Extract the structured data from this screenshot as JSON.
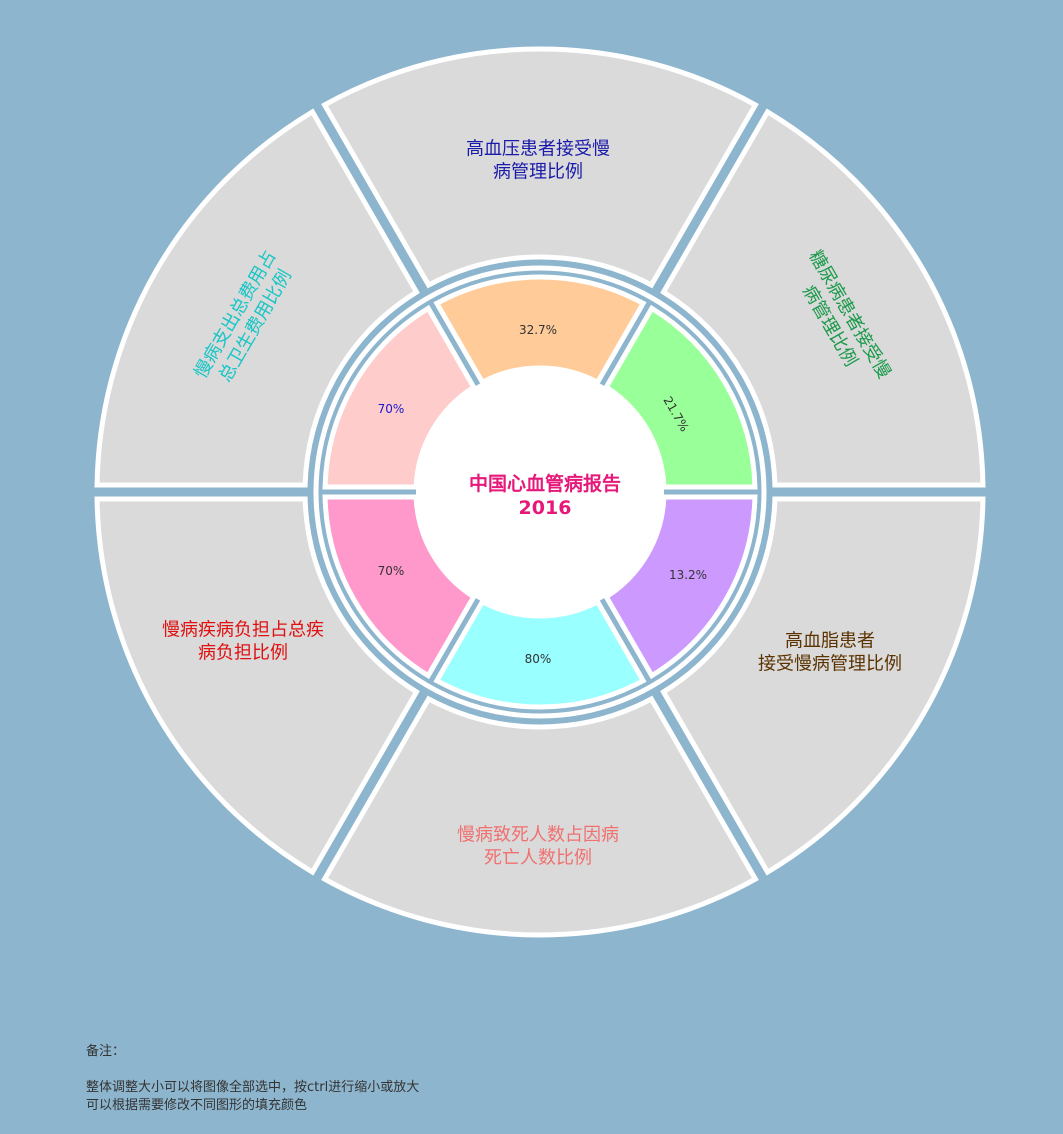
{
  "center": {
    "title_line1": "中国心血管病报告",
    "title_line2": "2016",
    "color": "#e6197a"
  },
  "segments": [
    {
      "id": "hypertension",
      "label_lines": [
        "高血压患者接受慢",
        "病管理比例"
      ],
      "value_label": "32.7%",
      "value": 32.7,
      "inner_fill": "#ffcc99",
      "label_color": "#1a1aaa"
    },
    {
      "id": "diabetes",
      "label_lines": [
        "糖尿病患者接受慢",
        "病管理比例"
      ],
      "value_label": "21.7%",
      "value": 21.7,
      "inner_fill": "#99ff99",
      "label_color": "#1a9a4a"
    },
    {
      "id": "hyperlipidemia",
      "label_lines": [
        "高血脂患者",
        "接受慢病管理比例"
      ],
      "value_label": "13.2%",
      "value": 13.2,
      "inner_fill": "#cc99ff",
      "label_color": "#5a3300"
    },
    {
      "id": "death",
      "label_lines": [
        "慢病致死人数占因病",
        "死亡人数比例"
      ],
      "value_label": "80%",
      "value": 80,
      "inner_fill": "#99ffff",
      "label_color": "#f07070"
    },
    {
      "id": "disease-burden",
      "label_lines": [
        "慢病疾病负担占总疾",
        "病负担比例"
      ],
      "value_label": "70%",
      "value": 70,
      "inner_fill": "#ff99cc",
      "label_color": "#e01010"
    },
    {
      "id": "expenditure",
      "label_lines": [
        "慢病支出总费用占",
        "总卫生费用比例"
      ],
      "value_label": "70%",
      "value": 70,
      "inner_fill": "#ffcccc",
      "label_color": "#19c5c5"
    }
  ],
  "colors": {
    "background": "#8db5cd",
    "outer_fill": "#dadada",
    "stroke": "#ffffff",
    "value_text": "#333333",
    "value_text_expenditure": "#1a1acc"
  },
  "notes": {
    "heading": "备注：",
    "line1": "整体调整大小可以将图像全部选中，按ctrl进行缩小或放大",
    "line2": "可以根据需要修改不同图形的填充颜色"
  }
}
